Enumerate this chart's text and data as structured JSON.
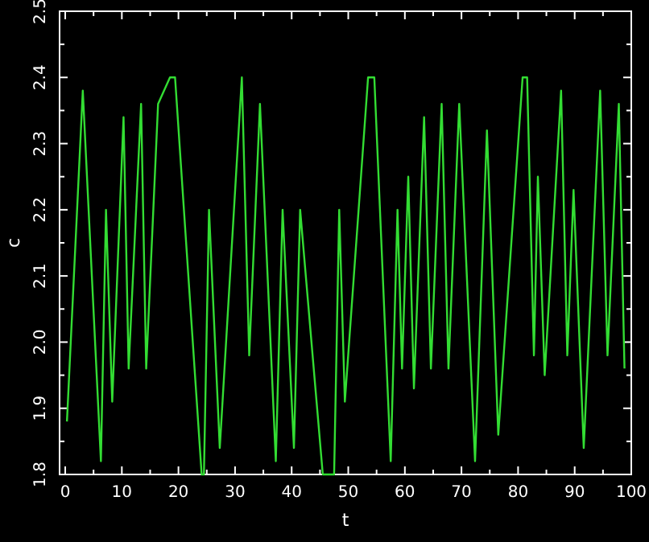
{
  "chart_data": {
    "type": "line",
    "xlabel": "t",
    "ylabel": "c",
    "xlim": [
      -1,
      100
    ],
    "ylim": [
      1.8,
      2.5
    ],
    "xticks": [
      0,
      {
        "value": 5,
        "label": null
      },
      10,
      {
        "value": 15,
        "label": null
      },
      20,
      {
        "value": 25,
        "label": null
      },
      30,
      {
        "value": 35,
        "label": null
      },
      40,
      {
        "value": 45,
        "label": null
      },
      50,
      {
        "value": 55,
        "label": null
      },
      60,
      {
        "value": 65,
        "label": null
      },
      70,
      {
        "value": 75,
        "label": null
      },
      80,
      {
        "value": 85,
        "label": null
      },
      90,
      {
        "value": 95,
        "label": null
      },
      100
    ],
    "yticks": [
      {
        "value": 1.8,
        "label": "1.8"
      },
      {
        "value": 1.85,
        "label": null
      },
      {
        "value": 1.9,
        "label": "1.9"
      },
      {
        "value": 1.95,
        "label": null
      },
      {
        "value": 2.0,
        "label": "2.0"
      },
      {
        "value": 2.05,
        "label": null
      },
      {
        "value": 2.1,
        "label": "2.1"
      },
      {
        "value": 2.15,
        "label": null
      },
      {
        "value": 2.2,
        "label": "2.2"
      },
      {
        "value": 2.25,
        "label": null
      },
      {
        "value": 2.3,
        "label": "2.3"
      },
      {
        "value": 2.35,
        "label": null
      },
      {
        "value": 2.4,
        "label": "2.4"
      },
      {
        "value": 2.45,
        "label": null
      },
      {
        "value": 2.5,
        "label": "2.5"
      }
    ],
    "grid": false,
    "marker": "none",
    "line_style": "solid",
    "series": [
      {
        "color": "#33dd33",
        "x": [
          0.3,
          3.1,
          6.3,
          7.2,
          8.3,
          10.3,
          11.2,
          13.4,
          14.3,
          16.4,
          18.5,
          19.4,
          24.1,
          24.5,
          25.4,
          27.3,
          31.2,
          32.5,
          34.4,
          37.2,
          38.4,
          40.4,
          41.5,
          45.5,
          47.5,
          48.4,
          49.4,
          53.5,
          54.6,
          57.5,
          58.7,
          59.5,
          60.6,
          61.6,
          63.4,
          64.6,
          66.5,
          67.7,
          69.6,
          72.4,
          74.5,
          76.5,
          80.8,
          81.6,
          82.8,
          83.5,
          84.7,
          87.6,
          88.7,
          89.8,
          91.6,
          94.5,
          95.8,
          97.8,
          98.8
        ],
        "values": [
          1.88,
          2.38,
          1.82,
          2.2,
          1.91,
          2.34,
          1.96,
          2.36,
          1.96,
          2.36,
          2.4,
          2.4,
          1.8,
          1.8,
          2.2,
          1.84,
          2.4,
          1.98,
          2.36,
          1.82,
          2.2,
          1.84,
          2.2,
          1.8,
          1.8,
          2.2,
          1.91,
          2.4,
          2.4,
          1.82,
          2.2,
          1.96,
          2.25,
          1.93,
          2.34,
          1.96,
          2.36,
          1.96,
          2.36,
          1.82,
          2.32,
          1.86,
          2.4,
          2.4,
          1.98,
          2.25,
          1.95,
          2.38,
          1.98,
          2.23,
          1.84,
          2.38,
          1.98,
          2.36,
          1.96
        ]
      }
    ]
  }
}
